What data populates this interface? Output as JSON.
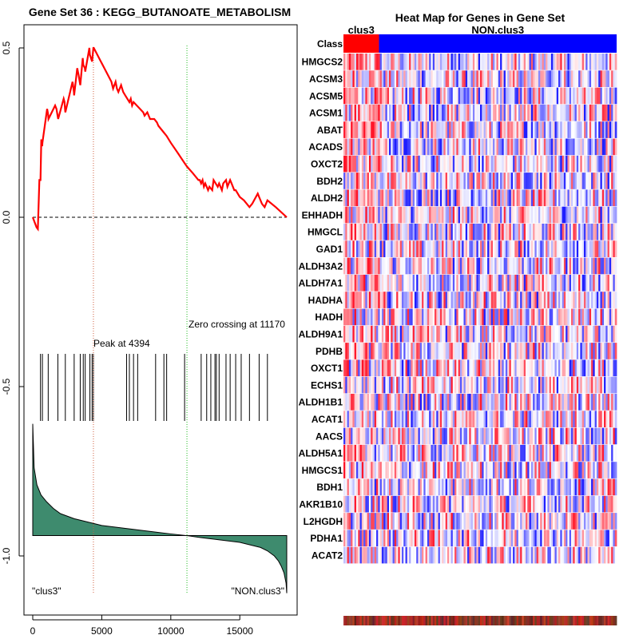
{
  "left_title": "Gene Set  36 : KEGG_BUTANOATE_METABOLISM",
  "right_title": "Heat Map for Genes in Gene Set",
  "chart_data": [
    {
      "type": "line",
      "name": "enrichment-score",
      "x": [
        0,
        280,
        370,
        480,
        560,
        620,
        680,
        700,
        1040,
        1090,
        1120,
        1140,
        1620,
        1720,
        1800,
        1840,
        2240,
        2300,
        2340,
        2360,
        2880,
        2920,
        2980,
        3000,
        3220,
        3320,
        3400,
        3440,
        3620,
        3660,
        3780,
        3800,
        4100,
        4140,
        4300,
        4394,
        4420,
        5700,
        5760,
        5820,
        6000,
        6100,
        6200,
        6400,
        6550,
        6700,
        7000,
        7100,
        7200,
        7300,
        8000,
        8100,
        8300,
        8500,
        8800,
        9000,
        9100,
        9500,
        9700,
        10000,
        10500,
        11000,
        11170,
        11600,
        12000,
        12100,
        12200,
        12300,
        12400,
        12500,
        12700,
        12800,
        13000,
        13100,
        13400,
        13500,
        13700,
        13800,
        14000,
        14100,
        14300,
        14400,
        14600,
        14700,
        15000,
        15300,
        15700,
        15900,
        16300,
        16400,
        16600,
        16800,
        17000,
        17600,
        18400
      ],
      "values": [
        0,
        -0.03,
        -0.035,
        0.11,
        0.11,
        0.23,
        0.21,
        0.22,
        0.32,
        0.31,
        0.3,
        0.29,
        0.33,
        0.32,
        0.3,
        0.29,
        0.35,
        0.34,
        0.32,
        0.31,
        0.4,
        0.39,
        0.37,
        0.36,
        0.44,
        0.42,
        0.4,
        0.39,
        0.47,
        0.45,
        0.44,
        0.43,
        0.5,
        0.48,
        0.46,
        0.5,
        0.5,
        0.4,
        0.39,
        0.38,
        0.4,
        0.38,
        0.37,
        0.39,
        0.37,
        0.36,
        0.34,
        0.35,
        0.33,
        0.34,
        0.31,
        0.3,
        0.31,
        0.29,
        0.29,
        0.28,
        0.27,
        0.25,
        0.24,
        0.22,
        0.19,
        0.16,
        0.15,
        0.13,
        0.11,
        0.11,
        0.1,
        0.11,
        0.09,
        0.1,
        0.08,
        0.09,
        0.08,
        0.11,
        0.09,
        0.1,
        0.08,
        0.1,
        0.11,
        0.09,
        0.11,
        0.1,
        0.08,
        0.08,
        0.06,
        0.05,
        0.03,
        0.04,
        0.07,
        0.06,
        0.04,
        0.03,
        0.05,
        0.03,
        0
      ],
      "color": "#ff0000",
      "xlim": [
        0,
        18500
      ],
      "ylim": [
        -1.15,
        0.56
      ],
      "xticks": [
        0,
        5000,
        10000,
        15000
      ],
      "yticks": [
        -1.0,
        -0.5,
        0.0,
        0.5
      ],
      "xtick_labels": [
        "0",
        "5000",
        "10000",
        "15000"
      ],
      "ytick_labels": [
        "-1.0",
        "-0.5",
        "0.0",
        "0.5"
      ],
      "zero_line": 0,
      "peak_x": 4394,
      "peak_label": "Peak at 4394",
      "zero_crossing_x": 11170,
      "zero_crossing_label": "Zero crossing at 11170",
      "hit_positions": [
        560,
        700,
        1120,
        1820,
        2360,
        3000,
        3440,
        3660,
        3800,
        4140,
        4300,
        4394,
        6800,
        7000,
        7300,
        7600,
        8900,
        9500,
        9700,
        11000,
        12200,
        12600,
        12900,
        13200,
        13300,
        13500,
        14000,
        14300,
        14700,
        15100,
        15700,
        16400,
        17000
      ],
      "rank_metric": {
        "x": [
          0,
          100,
          300,
          600,
          1000,
          1500,
          2000,
          3000,
          4000,
          5000,
          6000,
          7000,
          8000,
          9000,
          10000,
          11170,
          12000,
          13000,
          14000,
          15000,
          16000,
          16500,
          17000,
          17500,
          17800,
          18000,
          18200,
          18350,
          18400
        ],
        "values": [
          -0.61,
          -0.74,
          -0.79,
          -0.82,
          -0.84,
          -0.86,
          -0.875,
          -0.89,
          -0.9,
          -0.91,
          -0.915,
          -0.92,
          -0.925,
          -0.93,
          -0.935,
          -0.94,
          -0.945,
          -0.95,
          -0.955,
          -0.96,
          -0.97,
          -0.975,
          -0.985,
          -1.0,
          -1.015,
          -1.03,
          -1.05,
          -1.08,
          -1.11
        ],
        "baseline": -0.94,
        "fill": "#3e8b6e"
      },
      "left_label": "\"clus3\"",
      "right_label": "\"NON.clus3\""
    },
    {
      "type": "heatmap",
      "name": "gene-heatmap",
      "class_label": "Class",
      "groups": [
        {
          "name": "clus3",
          "color": "#ff0000",
          "fraction": 0.13
        },
        {
          "name": "NON.clus3",
          "color": "#0000ff",
          "fraction": 0.87
        }
      ],
      "genes": [
        "HMGCS2",
        "ACSM3",
        "ACSM5",
        "ACSM1",
        "ABAT",
        "ACADS",
        "OXCT2",
        "BDH2",
        "ALDH2",
        "EHHADH",
        "HMGCL",
        "GAD1",
        "ALDH3A2",
        "ALDH7A1",
        "HADHA",
        "HADH",
        "ALDH9A1",
        "PDHB",
        "OXCT1",
        "ECHS1",
        "ALDH1B1",
        "ACAT1",
        "AACS",
        "ALDH5A1",
        "HMGCS1",
        "BDH1",
        "AKR1B10",
        "L2HGDH",
        "PDHA1",
        "ACAT2"
      ]
    }
  ]
}
